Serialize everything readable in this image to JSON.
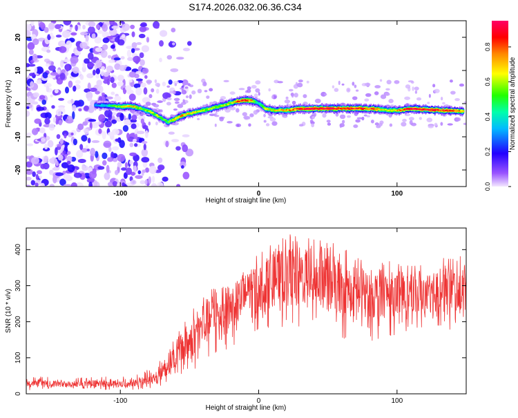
{
  "figure_title": "S174.2026.032.06.36.C34",
  "chart_data": [
    {
      "type": "heatmap",
      "title": "S174.2026.032.06.36.C34",
      "xlabel": "Height of straight line (km)",
      "ylabel": "Frequency (Hz)",
      "xlim": [
        -168,
        150
      ],
      "ylim": [
        -25,
        25
      ],
      "x_ticks": [
        -100,
        0,
        100
      ],
      "y_ticks": [
        -20,
        -10,
        0,
        10,
        20
      ],
      "colorbar": {
        "label": "Normalized spectral amplitude",
        "range": [
          0,
          0.95
        ],
        "ticks": [
          0.0,
          0.2,
          0.4,
          0.6,
          0.8
        ],
        "colormap": [
          "#f0e0ff",
          "#7a00ff",
          "#0000ff",
          "#00ffff",
          "#00ff00",
          "#ffff00",
          "#ff0000",
          "#ff0088"
        ]
      },
      "noise_region_x": [
        -168,
        -80
      ],
      "ridge": {
        "x": [
          -118,
          -110,
          -100,
          -90,
          -85,
          -78,
          -72,
          -66,
          -62,
          -55,
          -45,
          -35,
          -25,
          -18,
          -12,
          -6,
          0,
          5,
          12,
          20,
          30,
          45,
          60,
          75,
          85,
          92,
          100,
          110,
          120,
          130,
          140,
          148
        ],
        "freq": [
          -0.5,
          -0.6,
          -0.8,
          -0.9,
          -1.5,
          -2.5,
          -4,
          -5.5,
          -5,
          -3.5,
          -2.5,
          -1.5,
          -0.5,
          0.5,
          1.0,
          1.0,
          0.2,
          -1.5,
          -2.0,
          -2.0,
          -1.5,
          -1.5,
          -1.5,
          -1.5,
          -1.6,
          -2.0,
          -2.0,
          -1.5,
          -1.8,
          -2.0,
          -2.2,
          -2.3
        ],
        "amplitude": [
          0.3,
          0.38,
          0.6,
          0.7,
          0.55,
          0.6,
          0.55,
          0.5,
          0.6,
          0.72,
          0.6,
          0.58,
          0.6,
          0.65,
          0.85,
          0.8,
          0.4,
          0.6,
          0.65,
          0.7,
          0.85,
          0.92,
          0.9,
          0.85,
          0.8,
          0.6,
          0.7,
          0.88,
          0.9,
          0.85,
          0.8,
          0.75
        ]
      }
    },
    {
      "type": "line",
      "xlabel": "Height of straight line (km)",
      "ylabel": "SNR (10 * v/v)",
      "xlim": [
        -168,
        150
      ],
      "ylim": [
        0,
        460
      ],
      "x_ticks": [
        -100,
        0,
        100
      ],
      "y_ticks": [
        0,
        100,
        200,
        300,
        400
      ],
      "series": [
        {
          "name": "SNR",
          "color": "#ee3333",
          "envelope_x": [
            -168,
            -130,
            -100,
            -85,
            -75,
            -65,
            -55,
            -45,
            -35,
            -25,
            -15,
            -5,
            5,
            15,
            25,
            35,
            45,
            55,
            65,
            75,
            85,
            95,
            105,
            115,
            125,
            135,
            145,
            150
          ],
          "envelope_low": [
            10,
            12,
            10,
            12,
            15,
            30,
            50,
            70,
            100,
            120,
            140,
            160,
            180,
            180,
            175,
            180,
            170,
            160,
            150,
            140,
            150,
            160,
            170,
            170,
            180,
            170,
            180,
            180
          ],
          "envelope_high": [
            40,
            40,
            42,
            50,
            70,
            130,
            200,
            250,
            290,
            320,
            350,
            380,
            410,
            440,
            450,
            450,
            440,
            420,
            400,
            380,
            380,
            370,
            365,
            360,
            360,
            390,
            380,
            400
          ]
        }
      ]
    }
  ]
}
